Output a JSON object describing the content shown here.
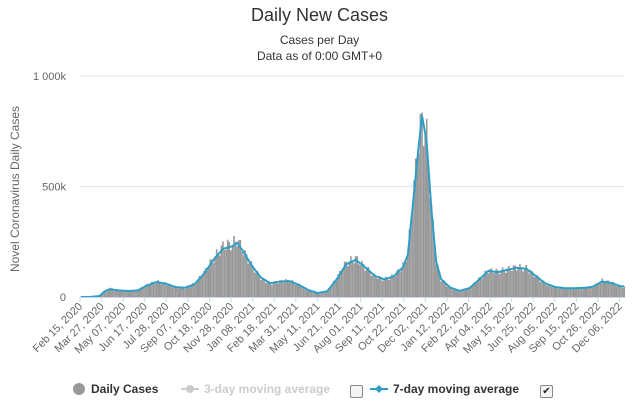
{
  "chart_data": {
    "type": "bar",
    "title": "Daily New Cases",
    "subtitle": [
      "Cases per Day",
      "Data as of 0:00 GMT+0"
    ],
    "ylabel": "Novel Coronavirus Daily Cases",
    "xlabel": "",
    "ylim": [
      0,
      1000000
    ],
    "yticks": [
      "0",
      "500k",
      "1 000k"
    ],
    "grid": true,
    "xticks": [
      "Feb 15, 2020",
      "Mar 27, 2020",
      "May 07, 2020",
      "Jun 17, 2020",
      "Jul 28, 2020",
      "Sep 07, 2020",
      "Oct 18, 2020",
      "Nov 28, 2020",
      "Jan 08, 2021",
      "Feb 18, 2021",
      "Mar 31, 2021",
      "May 11, 2021",
      "Jun 21, 2021",
      "Aug 01, 2021",
      "Sep 11, 2021",
      "Oct 22, 2021",
      "Dec 02, 2021",
      "Jan 12, 2022",
      "Feb 22, 2022",
      "Apr 04, 2022",
      "May 15, 2022",
      "Jun 25, 2022",
      "Aug 05, 2022",
      "Sep 15, 2022",
      "Oct 26, 2022",
      "Dec 06, 2022"
    ],
    "series": [
      {
        "name": "Daily Cases",
        "type": "bar",
        "color": "#999999",
        "points": [
          [
            0,
            0
          ],
          [
            6,
            0
          ],
          [
            12,
            5000
          ],
          [
            15,
            25000
          ],
          [
            18,
            40000
          ],
          [
            24,
            30000
          ],
          [
            30,
            25000
          ],
          [
            36,
            30000
          ],
          [
            42,
            55000
          ],
          [
            48,
            70000
          ],
          [
            54,
            60000
          ],
          [
            60,
            45000
          ],
          [
            66,
            40000
          ],
          [
            72,
            60000
          ],
          [
            78,
            110000
          ],
          [
            84,
            175000
          ],
          [
            90,
            230000
          ],
          [
            96,
            240000
          ],
          [
            99,
            260000
          ],
          [
            102,
            220000
          ],
          [
            108,
            145000
          ],
          [
            114,
            85000
          ],
          [
            120,
            60000
          ],
          [
            126,
            70000
          ],
          [
            132,
            75000
          ],
          [
            138,
            55000
          ],
          [
            144,
            30000
          ],
          [
            150,
            15000
          ],
          [
            156,
            25000
          ],
          [
            162,
            85000
          ],
          [
            168,
            155000
          ],
          [
            174,
            175000
          ],
          [
            180,
            135000
          ],
          [
            186,
            95000
          ],
          [
            192,
            80000
          ],
          [
            198,
            95000
          ],
          [
            204,
            140000
          ],
          [
            207,
            200000
          ],
          [
            210,
            420000
          ],
          [
            213,
            650000
          ],
          [
            216,
            800000
          ],
          [
            219,
            720000
          ],
          [
            222,
            400000
          ],
          [
            225,
            160000
          ],
          [
            228,
            80000
          ],
          [
            234,
            40000
          ],
          [
            240,
            25000
          ],
          [
            246,
            40000
          ],
          [
            252,
            80000
          ],
          [
            258,
            120000
          ],
          [
            264,
            115000
          ],
          [
            270,
            125000
          ],
          [
            276,
            135000
          ],
          [
            282,
            130000
          ],
          [
            288,
            95000
          ],
          [
            294,
            60000
          ],
          [
            300,
            45000
          ],
          [
            306,
            40000
          ],
          [
            312,
            40000
          ],
          [
            318,
            40000
          ],
          [
            324,
            45000
          ],
          [
            330,
            75000
          ],
          [
            336,
            65000
          ],
          [
            342,
            45000
          ]
        ]
      },
      {
        "name": "3-day moving average",
        "enabled": false,
        "color": "#cccccc"
      },
      {
        "name": "7-day moving average",
        "type": "line",
        "color": "#2f9ec6",
        "points": [
          [
            0,
            0
          ],
          [
            6,
            0
          ],
          [
            12,
            5000
          ],
          [
            15,
            25000
          ],
          [
            18,
            35000
          ],
          [
            24,
            30000
          ],
          [
            30,
            27000
          ],
          [
            36,
            30000
          ],
          [
            42,
            52000
          ],
          [
            48,
            68000
          ],
          [
            54,
            60000
          ],
          [
            60,
            45000
          ],
          [
            66,
            42000
          ],
          [
            72,
            58000
          ],
          [
            78,
            105000
          ],
          [
            84,
            168000
          ],
          [
            90,
            218000
          ],
          [
            96,
            230000
          ],
          [
            99,
            245000
          ],
          [
            102,
            215000
          ],
          [
            108,
            145000
          ],
          [
            114,
            88000
          ],
          [
            120,
            62000
          ],
          [
            126,
            70000
          ],
          [
            132,
            72000
          ],
          [
            138,
            55000
          ],
          [
            144,
            32000
          ],
          [
            150,
            18000
          ],
          [
            156,
            26000
          ],
          [
            162,
            80000
          ],
          [
            168,
            148000
          ],
          [
            174,
            168000
          ],
          [
            180,
            135000
          ],
          [
            186,
            96000
          ],
          [
            192,
            80000
          ],
          [
            198,
            93000
          ],
          [
            204,
            135000
          ],
          [
            207,
            190000
          ],
          [
            210,
            400000
          ],
          [
            213,
            620000
          ],
          [
            216,
            820000
          ],
          [
            219,
            700000
          ],
          [
            222,
            390000
          ],
          [
            225,
            160000
          ],
          [
            228,
            82000
          ],
          [
            234,
            42000
          ],
          [
            240,
            28000
          ],
          [
            246,
            40000
          ],
          [
            252,
            78000
          ],
          [
            258,
            118000
          ],
          [
            264,
            112000
          ],
          [
            270,
            123000
          ],
          [
            276,
            132000
          ],
          [
            282,
            128000
          ],
          [
            288,
            95000
          ],
          [
            294,
            62000
          ],
          [
            300,
            46000
          ],
          [
            306,
            40000
          ],
          [
            312,
            40000
          ],
          [
            318,
            41000
          ],
          [
            324,
            46000
          ],
          [
            330,
            70000
          ],
          [
            336,
            63000
          ],
          [
            342,
            48000
          ]
        ]
      }
    ]
  },
  "legend": {
    "daily_cases": "Daily Cases",
    "ma3": "3-day moving average",
    "ma7": "7-day moving average"
  }
}
